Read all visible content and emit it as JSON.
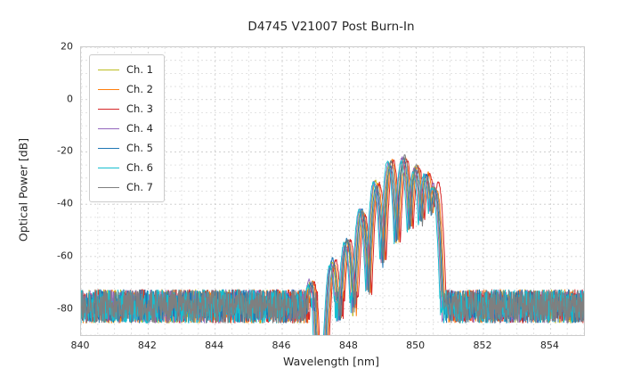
{
  "chart_data": {
    "type": "line",
    "title": "D4745 V21007 Post Burn-In",
    "xlabel": "Wavelength [nm]",
    "ylabel": "Optical Power [dB]",
    "xlim": [
      840,
      855
    ],
    "ylim": [
      -90,
      20
    ],
    "xticks": [
      840,
      842,
      844,
      846,
      848,
      850,
      852,
      854
    ],
    "yticks": [
      20,
      0,
      -20,
      -40,
      -60,
      -80
    ],
    "minor_x_step": 0.5,
    "minor_y_step": 5,
    "grid": {
      "on": true,
      "minor_color": "#dcdcdc",
      "major_color": "#c9c9c9",
      "dash": [
        2,
        3
      ]
    },
    "legend": {
      "position": "upper-left"
    },
    "series": [
      {
        "name": "Ch. 1",
        "color": "#bcbd22",
        "offset_nm": -0.02,
        "seed": 11
      },
      {
        "name": "Ch. 2",
        "color": "#ff7f0e",
        "offset_nm": 0.06,
        "seed": 22
      },
      {
        "name": "Ch. 3",
        "color": "#d62728",
        "offset_nm": 0.1,
        "seed": 33
      },
      {
        "name": "Ch. 4",
        "color": "#9467bd",
        "offset_nm": -0.05,
        "seed": 44
      },
      {
        "name": "Ch. 5",
        "color": "#1f77b4",
        "offset_nm": 0.0,
        "seed": 55
      },
      {
        "name": "Ch. 6",
        "color": "#17becf",
        "offset_nm": -0.08,
        "seed": 66
      },
      {
        "name": "Ch. 7",
        "color": "#7f7f7f",
        "offset_nm": 0.03,
        "seed": 77
      }
    ],
    "spectrum": {
      "noise_floor_db": -79,
      "noise_peak_to_peak_db": 13,
      "dropout_region_nm": [
        846.98,
        847.38
      ],
      "mode_width_coeff_db_per_nm2": 790,
      "modes": [
        {
          "center_nm": 846.85,
          "peak_db": -70
        },
        {
          "center_nm": 847.5,
          "peak_db": -62
        },
        {
          "center_nm": 847.93,
          "peak_db": -54
        },
        {
          "center_nm": 848.37,
          "peak_db": -43
        },
        {
          "center_nm": 848.8,
          "peak_db": -32
        },
        {
          "center_nm": 849.22,
          "peak_db": -24.5
        },
        {
          "center_nm": 849.62,
          "peak_db": -22.5
        },
        {
          "center_nm": 849.98,
          "peak_db": -26
        },
        {
          "center_nm": 850.3,
          "peak_db": -29
        },
        {
          "center_nm": 850.55,
          "peak_db": -33
        }
      ]
    }
  }
}
